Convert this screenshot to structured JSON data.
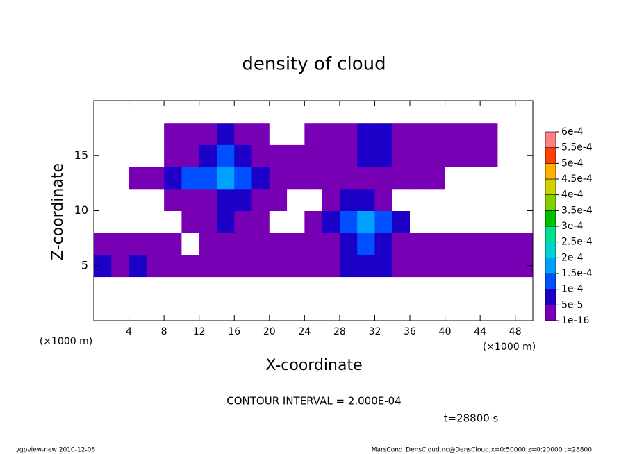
{
  "chart_data": {
    "type": "contour",
    "title": "density of cloud",
    "x_label": "X-coordinate",
    "y_label": "Z-coordinate",
    "x_unit": "(×1000 m)",
    "y_unit": "(×1000 m)",
    "note": "CONTOUR INTERVAL = 2.000E-04",
    "time_label": "t=28800 s",
    "footer_left": "./gpview-new  2010-12-08",
    "footer_right": "MarsCond_DensCloud.nc@DensCloud,x=0:50000,z=0:20000,t=28800",
    "xlim": [
      0,
      50
    ],
    "ylim": [
      0,
      20
    ],
    "xticks": [
      4,
      8,
      12,
      16,
      20,
      24,
      28,
      32,
      36,
      40,
      44,
      48
    ],
    "yticks": [
      5,
      10,
      15
    ],
    "x": [
      1,
      3,
      5,
      7,
      9,
      11,
      13,
      15,
      17,
      19,
      21,
      23,
      25,
      27,
      29,
      31,
      33,
      35,
      37,
      39,
      41,
      43,
      45,
      47,
      49
    ],
    "z": [
      1,
      3,
      5,
      7,
      9,
      11,
      13,
      15,
      17,
      19
    ],
    "values": [
      [
        0,
        0,
        0,
        0,
        0,
        0,
        0,
        0,
        0,
        0,
        0,
        0,
        0,
        0,
        0,
        0,
        0,
        0,
        0,
        0,
        0,
        0,
        0,
        0,
        0
      ],
      [
        0,
        0,
        0,
        0,
        0,
        0,
        0,
        0,
        0,
        0,
        0,
        0,
        0,
        0,
        0,
        0,
        0,
        0,
        0,
        0,
        0,
        0,
        0,
        0,
        0
      ],
      [
        7e-05,
        3e-06,
        7e-05,
        3e-06,
        3e-06,
        3e-06,
        3e-06,
        3e-06,
        3e-06,
        3e-06,
        3e-06,
        3e-06,
        3e-06,
        3e-06,
        7e-05,
        7e-05,
        7e-05,
        3e-06,
        3e-06,
        3e-06,
        3e-06,
        3e-06,
        3e-06,
        3e-06,
        3e-06
      ],
      [
        3e-06,
        3e-06,
        3e-06,
        3e-06,
        3e-06,
        0,
        3e-06,
        3e-06,
        3e-06,
        3e-06,
        3e-06,
        3e-06,
        3e-06,
        3e-06,
        7e-05,
        0.00012,
        7e-05,
        3e-06,
        3e-06,
        3e-06,
        3e-06,
        3e-06,
        3e-06,
        3e-06,
        3e-06
      ],
      [
        0,
        0,
        0,
        0,
        0,
        3e-06,
        3e-06,
        7e-05,
        3e-06,
        3e-06,
        0,
        0,
        3e-06,
        7e-05,
        0.00012,
        0.00017,
        0.00012,
        7e-05,
        0,
        0,
        0,
        0,
        0,
        0,
        0
      ],
      [
        0,
        0,
        0,
        0,
        3e-06,
        3e-06,
        3e-06,
        7e-05,
        7e-05,
        3e-06,
        3e-06,
        0,
        0,
        3e-06,
        7e-05,
        7e-05,
        3e-06,
        0,
        0,
        0,
        0,
        0,
        0,
        0,
        0
      ],
      [
        0,
        0,
        3e-06,
        3e-06,
        7e-05,
        0.00012,
        0.00012,
        0.00017,
        0.00012,
        7e-05,
        3e-06,
        3e-06,
        3e-06,
        3e-06,
        3e-06,
        3e-06,
        3e-06,
        3e-06,
        3e-06,
        3e-06,
        0,
        0,
        0,
        0,
        0
      ],
      [
        0,
        0,
        0,
        0,
        3e-06,
        3e-06,
        7e-05,
        0.00012,
        7e-05,
        3e-06,
        3e-06,
        3e-06,
        3e-06,
        3e-06,
        3e-06,
        7e-05,
        7e-05,
        3e-06,
        3e-06,
        3e-06,
        3e-06,
        3e-06,
        3e-06,
        0,
        0
      ],
      [
        0,
        0,
        0,
        0,
        3e-06,
        3e-06,
        3e-06,
        7e-05,
        3e-06,
        3e-06,
        0,
        0,
        3e-06,
        3e-06,
        3e-06,
        7e-05,
        7e-05,
        3e-06,
        3e-06,
        3e-06,
        3e-06,
        3e-06,
        3e-06,
        0,
        0
      ],
      [
        0,
        0,
        0,
        0,
        0,
        0,
        0,
        0,
        0,
        0,
        0,
        0,
        0,
        0,
        0,
        0,
        0,
        0,
        0,
        0,
        0,
        0,
        0,
        0,
        0
      ]
    ],
    "levels": [
      {
        "value": 1e-16,
        "label": "1e-16"
      },
      {
        "value": 5e-05,
        "label": "5e-5"
      },
      {
        "value": 0.0001,
        "label": "1e-4"
      },
      {
        "value": 0.00015,
        "label": "1.5e-4"
      },
      {
        "value": 0.0002,
        "label": "2e-4"
      },
      {
        "value": 0.00025,
        "label": "2.5e-4"
      },
      {
        "value": 0.0003,
        "label": "3e-4"
      },
      {
        "value": 0.00035,
        "label": "3.5e-4"
      },
      {
        "value": 0.0004,
        "label": "4e-4"
      },
      {
        "value": 0.00045,
        "label": "4.5e-4"
      },
      {
        "value": 0.0005,
        "label": "5e-4"
      },
      {
        "value": 0.00055,
        "label": "5.5e-4"
      },
      {
        "value": 0.0006,
        "label": "6e-4"
      }
    ],
    "colors": [
      "#7800b4",
      "#1c00c8",
      "#0050ff",
      "#00a0ff",
      "#00d2d2",
      "#00e08c",
      "#00c000",
      "#80d000",
      "#d0d000",
      "#ffb000",
      "#ff4000",
      "#ff8080"
    ]
  }
}
